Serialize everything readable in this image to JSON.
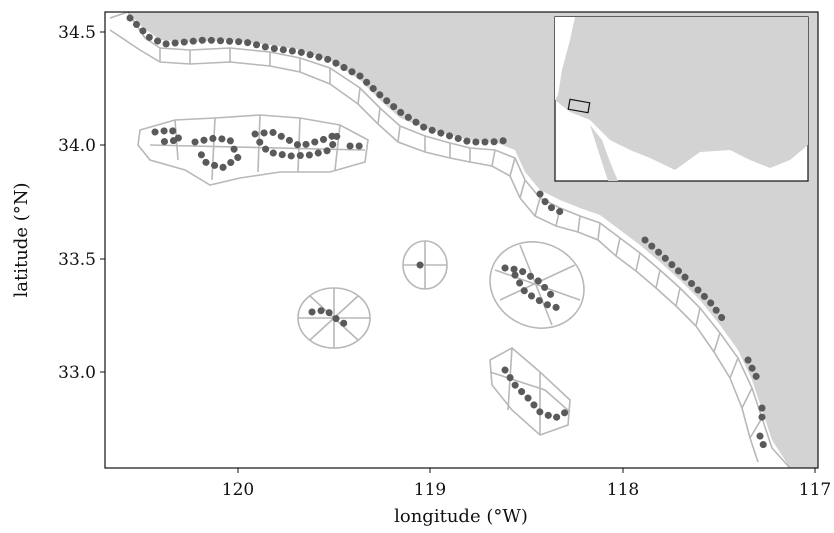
{
  "axes": {
    "xlabel": "longitude (°W)",
    "ylabel": "latitude (°N)",
    "xlim": [
      120.7,
      117.0
    ],
    "ylim": [
      32.65,
      34.6
    ],
    "x_ticks": [
      "120",
      "119",
      "118",
      "117"
    ],
    "y_ticks": [
      "33.0",
      "33.5",
      "34.0",
      "34.5"
    ]
  },
  "map": {
    "region": "Southern California Bight coastline and Channel Islands",
    "survey_points_color": "#5a5a5a",
    "land_color": "#d3d3d3",
    "grid_cell_stroke": "#b8b8b8",
    "inset": "Contiguous United States with study area box"
  }
}
